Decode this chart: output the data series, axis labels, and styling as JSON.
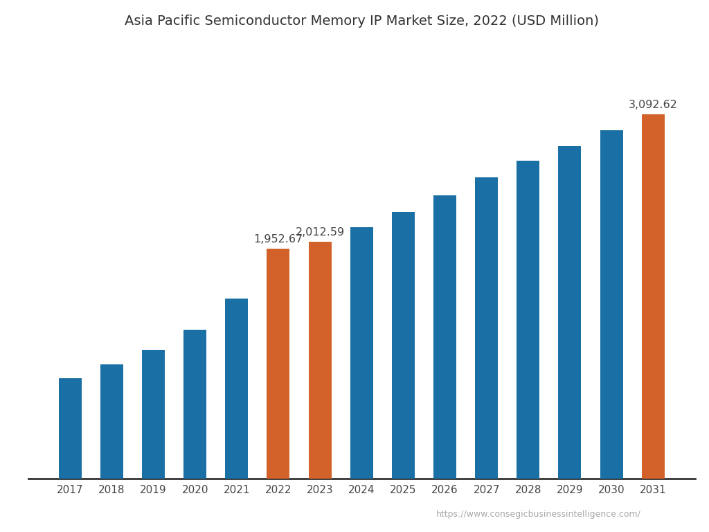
{
  "title": "Asia Pacific Semiconductor Memory IP Market Size, 2022 (USD Million)",
  "years": [
    2017,
    2018,
    2019,
    2020,
    2021,
    2022,
    2023,
    2024,
    2025,
    2026,
    2027,
    2028,
    2029,
    2030,
    2031
  ],
  "values": [
    855,
    970,
    1095,
    1265,
    1530,
    1952.67,
    2012.59,
    2135,
    2265,
    2405,
    2555,
    2695,
    2820,
    2955,
    3092.62
  ],
  "bar_colors": [
    "#1A6FA4",
    "#1A6FA4",
    "#1A6FA4",
    "#1A6FA4",
    "#1A6FA4",
    "#D2622A",
    "#D2622A",
    "#1A6FA4",
    "#1A6FA4",
    "#1A6FA4",
    "#1A6FA4",
    "#1A6FA4",
    "#1A6FA4",
    "#1A6FA4",
    "#D2622A"
  ],
  "annotated_bars": [
    5,
    6,
    14
  ],
  "annotations": [
    "1,952.67",
    "2,012.59",
    "3,092.62"
  ],
  "background_color": "#FFFFFF",
  "title_fontsize": 14,
  "tick_fontsize": 11,
  "annotation_fontsize": 11.5,
  "url_text": "https://www.consegicbusinessintelligence.com/",
  "ylim": [
    0,
    3700
  ]
}
